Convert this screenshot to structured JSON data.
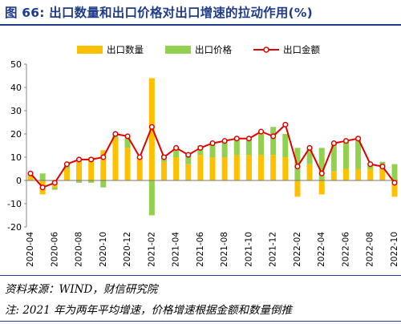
{
  "figure": {
    "title": "图 66: 出口数量和出口价格对出口增速的拉动作用(%)",
    "source": "资料来源：WIND，财信研究院",
    "note": "注: 2021 年为两年平均增速，价格增速根据金额和数量倒推"
  },
  "colors": {
    "quantity": "#ffc000",
    "price": "#92d050",
    "amount": "#e00000",
    "title": "#1f3c88"
  },
  "chart_data": {
    "type": "bar",
    "stacked": true,
    "ylim": [
      -20,
      50
    ],
    "yticks": [
      -20,
      -10,
      0,
      10,
      20,
      30,
      40,
      50
    ],
    "grid": false,
    "legend_position": "top",
    "x_tick_labels": [
      "2020-04",
      "2020-06",
      "2020-08",
      "2020-10",
      "2020-12",
      "2021-02",
      "2021-04",
      "2021-06",
      "2021-08",
      "2021-10",
      "2021-12",
      "2022-02",
      "2022-04",
      "2022-06",
      "2022-08",
      "2022-10"
    ],
    "categories": [
      "2020-04",
      "2020-05",
      "2020-06",
      "2020-07",
      "2020-08",
      "2020-09",
      "2020-10",
      "2020-11",
      "2020-12",
      "2021-01",
      "2021-02",
      "2021-03",
      "2021-04",
      "2021-05",
      "2021-06",
      "2021-07",
      "2021-08",
      "2021-09",
      "2021-10",
      "2021-11",
      "2021-12",
      "2022-01",
      "2022-02",
      "2022-03",
      "2022-04",
      "2022-05",
      "2022-06",
      "2022-07",
      "2022-08",
      "2022-09",
      "2022-10"
    ],
    "series": [
      {
        "name": "出口数量",
        "type": "bar",
        "values": [
          2,
          -6,
          -3,
          5,
          9,
          10,
          13,
          18,
          14,
          10,
          44,
          8,
          10,
          7,
          11,
          10,
          10,
          11,
          11,
          11,
          11,
          10,
          -7,
          7,
          -6,
          4,
          5,
          5,
          5,
          5,
          -7
        ]
      },
      {
        "name": "出口价格",
        "type": "bar",
        "values": [
          1,
          3,
          -1,
          2,
          -1,
          -1,
          -3,
          2,
          5,
          0,
          -15,
          3,
          4,
          4,
          4,
          6,
          7,
          7,
          7,
          9,
          12,
          10,
          14,
          7,
          14,
          12,
          12,
          13,
          2,
          3,
          7
        ]
      },
      {
        "name": "出口金额",
        "type": "line",
        "values": [
          3,
          -3,
          -1,
          7,
          9,
          9,
          10,
          20,
          19,
          10,
          23,
          10,
          14,
          11,
          14,
          16,
          17,
          18,
          18,
          21,
          19,
          24,
          6,
          14,
          3,
          16,
          17,
          18,
          7,
          6,
          -1
        ]
      }
    ]
  }
}
